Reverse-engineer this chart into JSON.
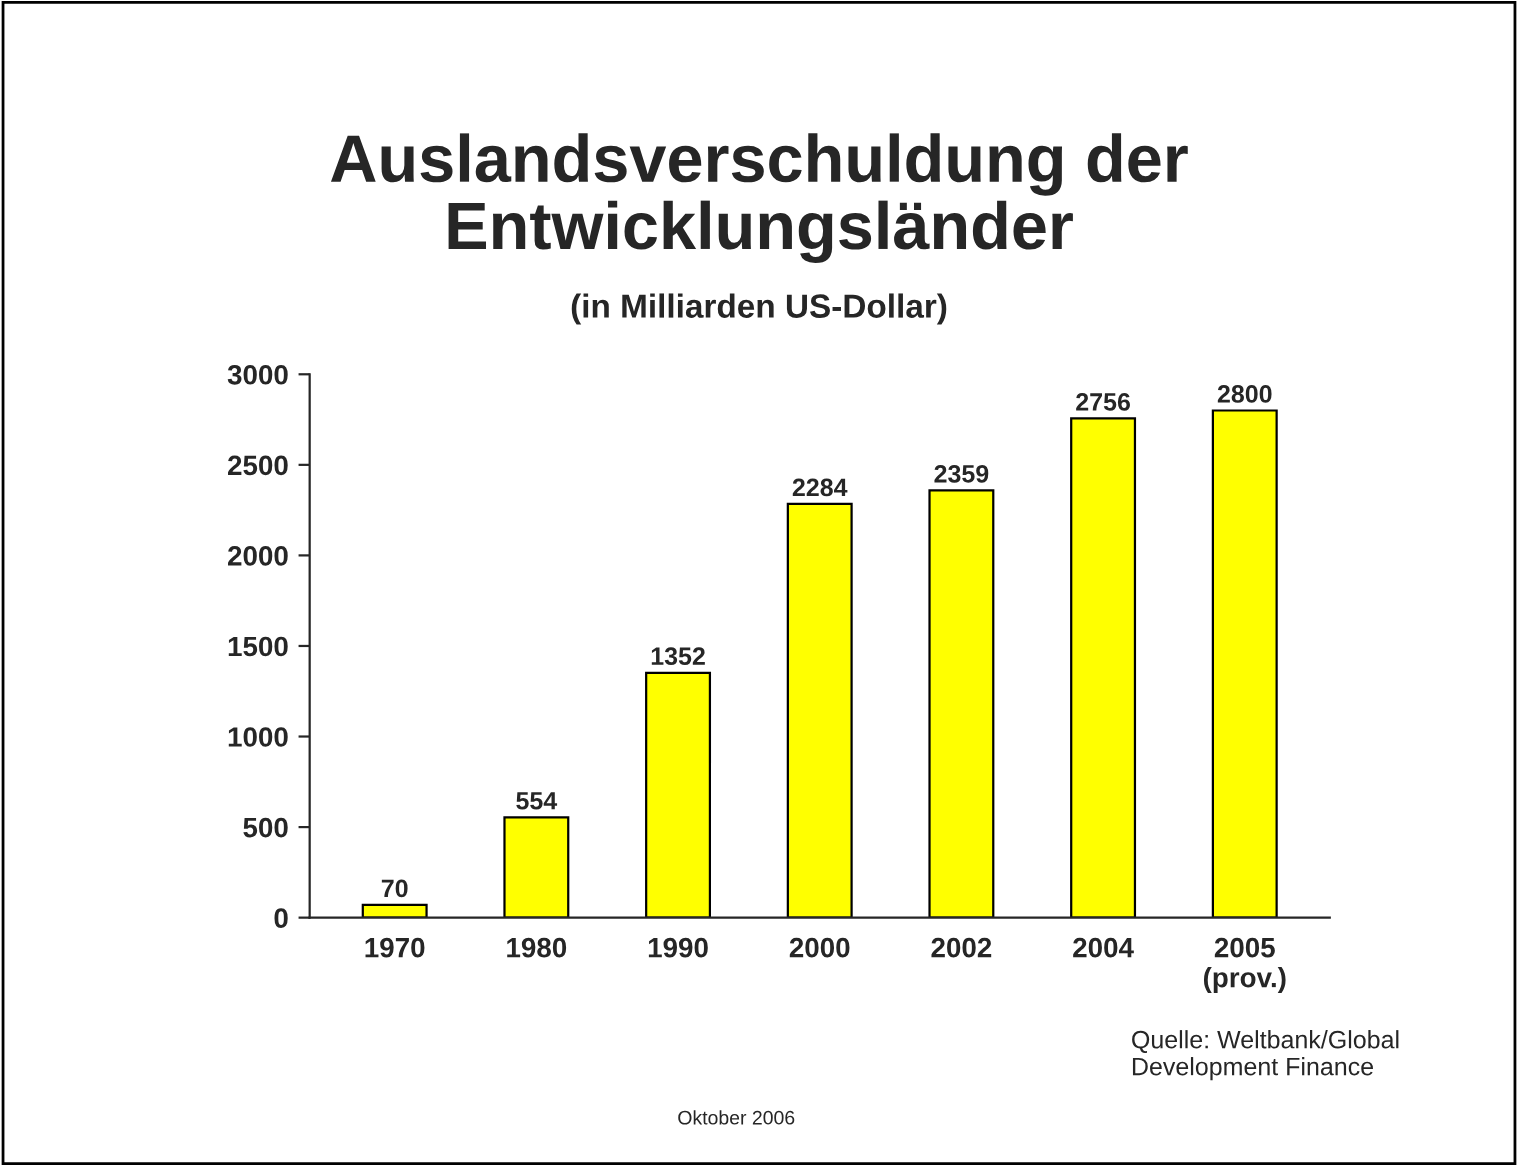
{
  "chart_data": {
    "type": "bar",
    "title": "Auslandsverschuldung der\nEntwicklungsländer",
    "subtitle": "(in Milliarden US-Dollar)",
    "categories": [
      "1970",
      "1980",
      "1990",
      "2000",
      "2002",
      "2004",
      "2005\n(prov.)"
    ],
    "values": [
      70,
      554,
      1352,
      2284,
      2359,
      2756,
      2800
    ],
    "color": "#ffff00",
    "ylim": [
      0,
      3000
    ],
    "yticks": [
      0,
      500,
      1000,
      1500,
      2000,
      2500,
      3000
    ],
    "grid": false,
    "data_labels": true,
    "annotations": [
      "Quelle: Weltbank/Global\nDevelopment Finance",
      "Oktober 2006"
    ]
  }
}
